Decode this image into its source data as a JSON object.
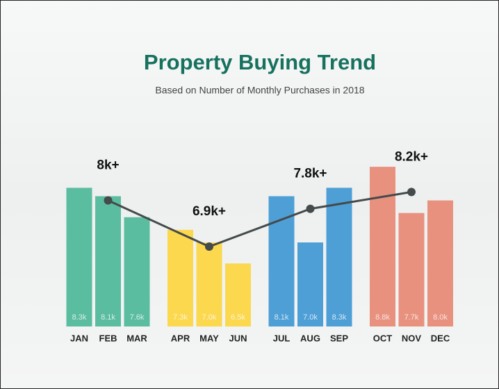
{
  "chart_data": {
    "type": "bar",
    "title": "Property Buying Trend",
    "subtitle": "Based on Number of Monthly Purchases in 2018",
    "categories": [
      "JAN",
      "FEB",
      "MAR",
      "APR",
      "MAY",
      "JUN",
      "JUL",
      "AUG",
      "SEP",
      "OCT",
      "NOV",
      "DEC"
    ],
    "values": [
      8300,
      8100,
      7600,
      7300,
      7000,
      6500,
      8100,
      7000,
      8300,
      8800,
      7700,
      8000
    ],
    "value_labels": [
      "8.3k",
      "8.1k",
      "7.6k",
      "7.3k",
      "7.0k",
      "6.5k",
      "8.1k",
      "7.0k",
      "8.3k",
      "8.8k",
      "7.7k",
      "8.0k"
    ],
    "colors": [
      "#5bbda0",
      "#5bbda0",
      "#5bbda0",
      "#fbd84e",
      "#fbd84e",
      "#fbd84e",
      "#4e9fd6",
      "#4e9fd6",
      "#4e9fd6",
      "#e8917e",
      "#e8917e",
      "#e8917e"
    ],
    "ylim": [
      5000,
      9000
    ],
    "trend": {
      "categories": [
        "FEB",
        "MAY",
        "AUG",
        "NOV"
      ],
      "values": [
        8000,
        6900,
        7800,
        8200
      ],
      "value_labels": [
        "8k+",
        "6.9k+",
        "7.8k+",
        "8.2k+"
      ],
      "color": "#454a4a"
    }
  }
}
